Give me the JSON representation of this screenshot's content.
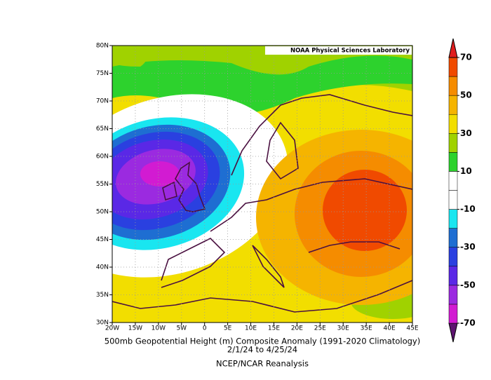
{
  "map": {
    "credit": "NOAA Physical Sciences Laboratory",
    "lat_labels": [
      "80N",
      "75N",
      "70N",
      "65N",
      "60N",
      "55N",
      "50N",
      "45N",
      "40N",
      "35N",
      "30N"
    ],
    "lon_labels": [
      "20W",
      "15W",
      "10W",
      "5W",
      "0",
      "5E",
      "10E",
      "15E",
      "20E",
      "25E",
      "30E",
      "35E",
      "40E",
      "45E"
    ],
    "title": "500mb Geopotential Height (m) Composite Anomaly (1991-2020 Climatology)",
    "dates": "2/1/24  to 4/25/24",
    "source": "NCEP/NCAR Reanalysis"
  },
  "colorbar": {
    "labels": [
      70,
      50,
      30,
      10,
      -10,
      -30,
      -50,
      -70
    ],
    "colors": [
      "#5e1470",
      "#d21bd2",
      "#9b2ae0",
      "#5a28e6",
      "#2a40e0",
      "#1e6ed2",
      "#19e6f0",
      "#ffffff",
      "#ffffff",
      "#2dd22d",
      "#a0d200",
      "#f2de00",
      "#f5b400",
      "#f58c00",
      "#f04a00",
      "#e01e1e"
    ]
  }
}
